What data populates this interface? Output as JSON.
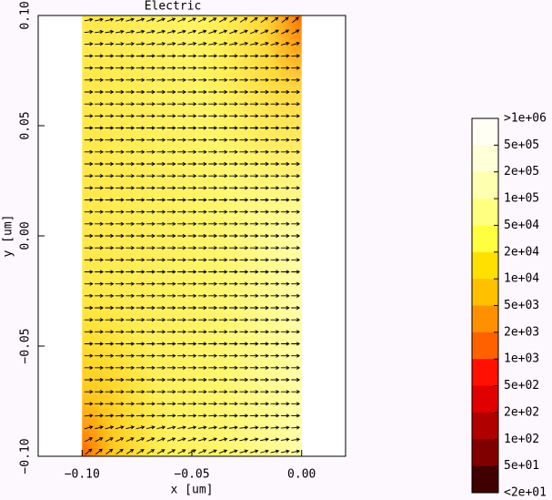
{
  "chart_data": {
    "type": "vector-field",
    "title": "Electric",
    "x_label": "x [um]",
    "y_label": "y [um]",
    "xlim": [
      -0.12,
      0.02
    ],
    "ylim": [
      -0.1,
      0.1
    ],
    "xticks": [
      {
        "value": -0.1,
        "label": "−0.10"
      },
      {
        "value": -0.05,
        "label": "−0.05"
      },
      {
        "value": 0,
        "label": "0.00"
      }
    ],
    "yticks": [
      {
        "value": -0.1,
        "label": "−0.10"
      },
      {
        "value": -0.05,
        "label": "−0.05"
      },
      {
        "value": 0,
        "label": "0.00"
      },
      {
        "value": 0.05,
        "label": "0.05"
      },
      {
        "value": 0.1,
        "label": "0.10"
      }
    ],
    "domain_x": [
      {
        "value": -0.1,
        "label": "−0.10"
      },
      {
        "value": 0,
        "label": "0.00"
      }
    ],
    "colorbar": {
      "ticks": [
        {
          "value": 1000000,
          "label": ">1e+06"
        },
        {
          "value": 500000,
          "label": "5e+05"
        },
        {
          "value": 200000,
          "label": "2e+05"
        },
        {
          "value": 100000,
          "label": "1e+05"
        },
        {
          "value": 50000,
          "label": "5e+04"
        },
        {
          "value": 20000,
          "label": "2e+04"
        },
        {
          "value": 10000,
          "label": "1e+04"
        },
        {
          "value": 5000,
          "label": "5e+03"
        },
        {
          "value": 2000,
          "label": "2e+03"
        },
        {
          "value": 1000,
          "label": "1e+03"
        },
        {
          "value": 500,
          "label": "5e+02"
        },
        {
          "value": 200,
          "label": "2e+02"
        },
        {
          "value": 100,
          "label": "1e+02"
        },
        {
          "value": 50,
          "label": "5e+01"
        },
        {
          "value": 20,
          "label": "<2e+01"
        }
      ],
      "colors": [
        "#fffff4",
        "#ffffd8",
        "#ffffb0",
        "#ffff80",
        "#ffff40",
        "#ffe000",
        "#ffc000",
        "#ff9000",
        "#ff6000",
        "#ff1000",
        "#e00000",
        "#b00000",
        "#800000",
        "#400000"
      ]
    }
  }
}
